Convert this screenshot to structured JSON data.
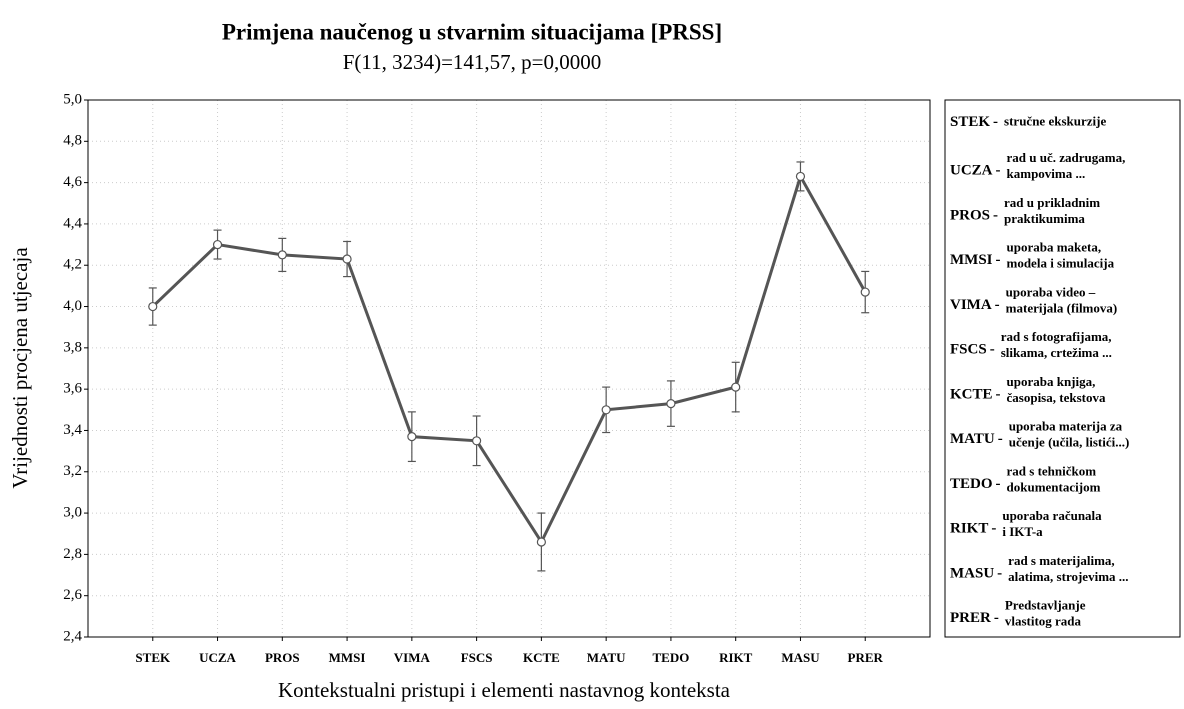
{
  "chart_data": {
    "type": "line",
    "title": "Primjena naučenog u stvarnim situacijama [PRSS]",
    "subtitle": "F(11, 3234)=141,57, p=0,0000",
    "y_label": "Vrijednosti procjena utjecaja",
    "x_label": "Kontekstualni pristupi i elementi nastavnog konteksta",
    "categories": [
      "STEK",
      "UCZA",
      "PROS",
      "MMSI",
      "VIMA",
      "FSCS",
      "KCTE",
      "MATU",
      "TEDO",
      "RIKT",
      "MASU",
      "PRER"
    ],
    "series": [
      {
        "name": "PRSS",
        "color": "#555555",
        "values": [
          4.0,
          4.3,
          4.25,
          4.23,
          3.37,
          3.35,
          2.86,
          3.5,
          3.53,
          3.61,
          4.63,
          4.07
        ],
        "errors": [
          0.09,
          0.07,
          0.08,
          0.085,
          0.12,
          0.12,
          0.14,
          0.11,
          0.11,
          0.12,
          0.07,
          0.1
        ]
      }
    ],
    "ylim": [
      2.4,
      5.0
    ],
    "yticks": [
      {
        "value": 2.4,
        "label": "2,4"
      },
      {
        "value": 2.6,
        "label": "2,6"
      },
      {
        "value": 2.8,
        "label": "2,8"
      },
      {
        "value": 3.0,
        "label": "3,0"
      },
      {
        "value": 3.2,
        "label": "3,2"
      },
      {
        "value": 3.4,
        "label": "3,4"
      },
      {
        "value": 3.6,
        "label": "3,6"
      },
      {
        "value": 3.8,
        "label": "3,8"
      },
      {
        "value": 4.0,
        "label": "4,0"
      },
      {
        "value": 4.2,
        "label": "4,2"
      },
      {
        "value": 4.4,
        "label": "4,4"
      },
      {
        "value": 4.6,
        "label": "4,6"
      },
      {
        "value": 4.8,
        "label": "4,8"
      },
      {
        "value": 5.0,
        "label": "5,0"
      }
    ],
    "grid": true,
    "legend": [
      {
        "code": "STEK",
        "description": [
          "stručne ekskurzije"
        ]
      },
      {
        "code": "UCZA",
        "description": [
          "rad u uč. zadrugama,",
          "kampovima ..."
        ]
      },
      {
        "code": "PROS",
        "description": [
          "rad u prikladnim",
          "praktikumima"
        ]
      },
      {
        "code": "MMSI",
        "description": [
          "uporaba maketa,",
          "modela i simulacija"
        ]
      },
      {
        "code": "VIMA",
        "description": [
          "uporaba video –",
          "materijala (filmova)"
        ]
      },
      {
        "code": "FSCS",
        "description": [
          "rad s fotografijama,",
          "slikama, crtežima ..."
        ]
      },
      {
        "code": "KCTE",
        "description": [
          "uporaba knjiga,",
          "časopisa, tekstova"
        ]
      },
      {
        "code": "MATU",
        "description": [
          "uporaba materija za",
          "učenje (učila, listići...)"
        ]
      },
      {
        "code": "TEDO",
        "description": [
          "rad s tehničkom",
          "dokumentacijom"
        ]
      },
      {
        "code": "RIKT",
        "description": [
          "uporaba računala",
          "i IKT-a"
        ]
      },
      {
        "code": "MASU",
        "description": [
          "rad s materijalima,",
          "alatima, strojevima ..."
        ]
      },
      {
        "code": "PRER",
        "description": [
          "Predstavljanje",
          "vlastitog rada"
        ]
      }
    ]
  }
}
